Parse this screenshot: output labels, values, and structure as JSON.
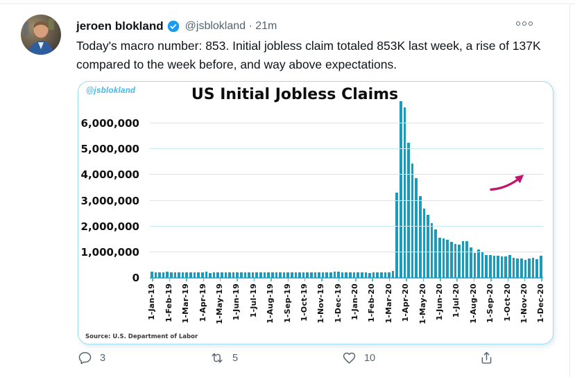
{
  "tweet": {
    "author_name": "jeroen blokland",
    "handle_time": "@jsblokland · 21m",
    "body": "Today's macro number: 853. Initial jobless claim totaled 853K last week, a rise of 137K compared to the week before, and way above expectations.",
    "engagement": {
      "replies": "3",
      "retweets": "5",
      "likes": "10"
    }
  },
  "chart_data": {
    "type": "bar",
    "title": "US Initial Jobless Claims",
    "watermark": "@jsblokland",
    "source": "Source: U.S. Department of Labor",
    "ylabel": "",
    "xlabel": "",
    "ylim": [
      0,
      7000000
    ],
    "grid": true,
    "bar_color": "#1a9bba",
    "gridline_color": "#c5e9f3",
    "arrow_color": "#c2156e",
    "ytick_values": [
      6000000,
      5000000,
      4000000,
      3000000,
      2000000,
      1000000,
      0
    ],
    "ytick_labels": [
      "6,000,000",
      "5,000,000",
      "4,000,000",
      "3,000,000",
      "2,000,000",
      "1,000,000",
      "0"
    ],
    "x_tick_labels": [
      "1-Jan-19",
      "1-Feb-19",
      "1-Mar-19",
      "1-Apr-19",
      "1-May-19",
      "1-Jun-19",
      "1-Jul-19",
      "1-Aug-19",
      "1-Sep-19",
      "1-Oct-19",
      "1-Nov-19",
      "1-Dec-19",
      "1-Jan-20",
      "1-Feb-20",
      "1-Mar-20",
      "1-Apr-20",
      "1-May-20",
      "1-Jun-20",
      "1-Jul-20",
      "1-Aug-20",
      "1-Sep-20",
      "1-Oct-20",
      "1-Nov-20",
      "1-Dec-20"
    ],
    "values_unit": "thousands of weekly claims",
    "values_thousands": [
      231,
      220,
      212,
      218,
      230,
      225,
      216,
      226,
      223,
      226,
      216,
      212,
      204,
      212,
      230,
      193,
      212,
      218,
      211,
      218,
      221,
      217,
      221,
      222,
      217,
      221,
      209,
      211,
      216,
      220,
      209,
      216,
      217,
      214,
      219,
      213,
      210,
      218,
      210,
      214,
      213,
      218,
      212,
      215,
      225,
      211,
      213,
      234,
      235,
      223,
      222,
      224,
      212,
      207,
      220,
      212,
      201,
      205,
      215,
      220,
      217,
      211,
      282,
      3307,
      6867,
      6615,
      5237,
      4442,
      3867,
      3176,
      2687,
      2446,
      2123,
      1897,
      1566,
      1540,
      1480,
      1413,
      1310,
      1300,
      1416,
      1435,
      1186,
      963,
      1106,
      1011,
      881,
      884,
      866,
      870,
      837,
      840,
      898,
      787,
      758,
      751,
      711,
      742,
      778,
      716,
      853
    ],
    "annotation": "uptick arrow at latest weeks"
  }
}
